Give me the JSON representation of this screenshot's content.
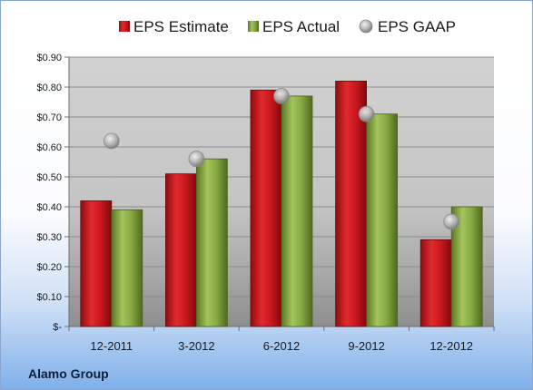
{
  "colors": {
    "estimate": "#c0161c",
    "actual": "#7fa03c",
    "gaap": "#a8a8a8"
  },
  "company_label": "Alamo Group",
  "chart_data": {
    "type": "bar",
    "categories": [
      "12-2011",
      "3-2012",
      "6-2012",
      "9-2012",
      "12-2012"
    ],
    "series": [
      {
        "name": "EPS Estimate",
        "type": "bar",
        "values": [
          0.42,
          0.51,
          0.79,
          0.82,
          0.29
        ]
      },
      {
        "name": "EPS Actual",
        "type": "bar",
        "values": [
          0.39,
          0.56,
          0.77,
          0.71,
          0.4
        ]
      },
      {
        "name": "EPS GAAP",
        "type": "scatter",
        "values": [
          0.62,
          0.56,
          0.77,
          0.71,
          0.35
        ]
      }
    ],
    "ylim": [
      0,
      0.9
    ],
    "yticks": [
      0,
      0.1,
      0.2,
      0.3,
      0.4,
      0.5,
      0.6,
      0.7,
      0.8,
      0.9
    ],
    "ytick_labels": [
      "$-",
      "$0.10",
      "$0.20",
      "$0.30",
      "$0.40",
      "$0.50",
      "$0.60",
      "$0.70",
      "$0.80",
      "$0.90"
    ],
    "legend_position": "top",
    "grid": true
  }
}
